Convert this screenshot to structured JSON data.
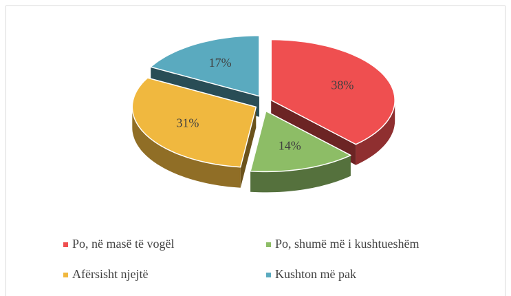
{
  "chart_data": {
    "type": "pie3d",
    "categories": [
      "Po, në masë të vogël",
      "Po, shumë më i kushtueshëm",
      "Afërsisht njejtë",
      "Kushton më pak"
    ],
    "values": [
      38,
      14,
      31,
      17
    ],
    "value_labels": [
      "38%",
      "14%",
      "31%",
      "17%"
    ],
    "colors": [
      "#ef4f50",
      "#8dbd66",
      "#f0b83f",
      "#5aaabf"
    ],
    "legend": "bottom"
  }
}
